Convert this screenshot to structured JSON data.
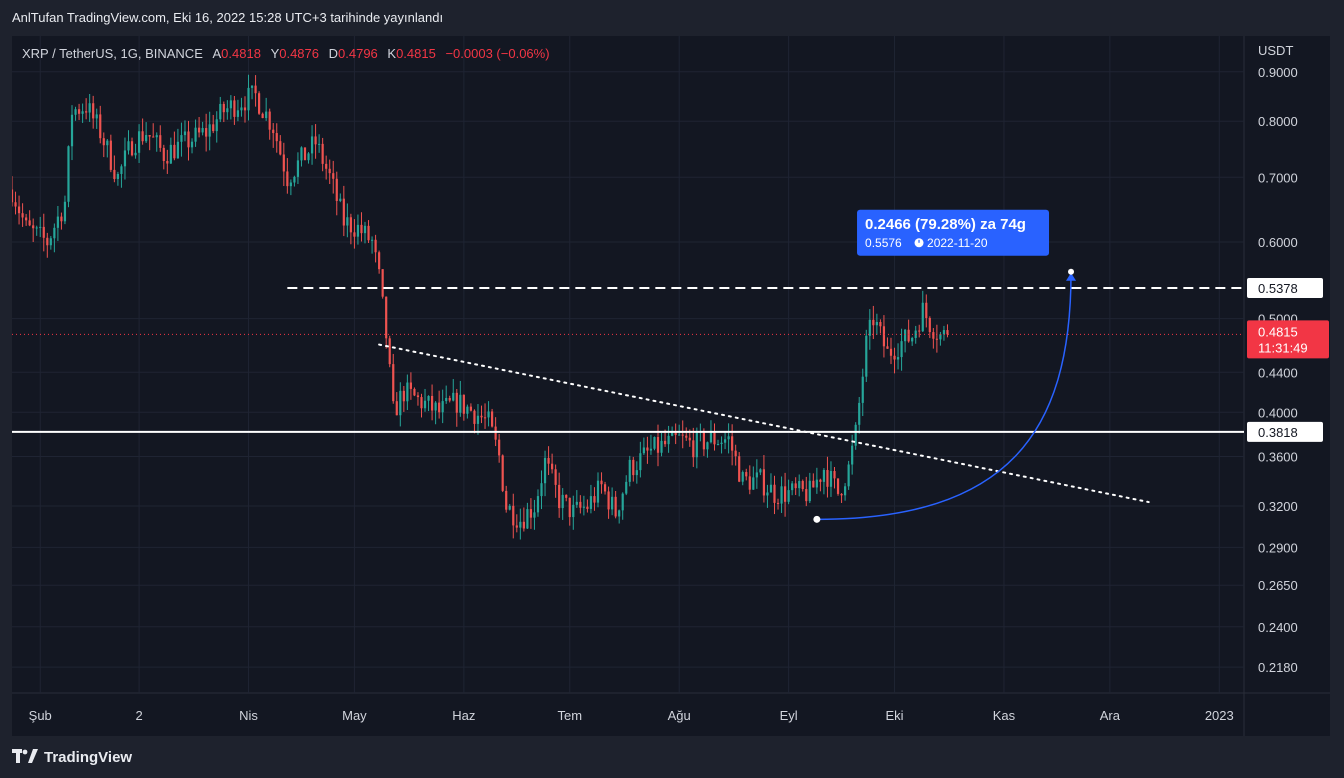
{
  "header": {
    "published_text": "AnlTufan TradingView.com, Eki 16, 2022 15:28 UTC+3 tarihinde yayınlandı"
  },
  "symbol": {
    "name": "XRP / TetherUS, 1G, BINANCE",
    "open_label": "A",
    "open": "0.4818",
    "high_label": "Y",
    "high": "0.4876",
    "low_label": "D",
    "low": "0.4796",
    "close_label": "K",
    "close": "0.4815",
    "change": "−0.0003 (−0.06%)"
  },
  "footer": {
    "brand": "TradingView"
  },
  "chart_data": {
    "type": "candlestick",
    "currency_label": "USDT",
    "y_scale": "log",
    "ylim": [
      0.205,
      0.98
    ],
    "y_ticks": [
      0.218,
      0.24,
      0.265,
      0.29,
      0.32,
      0.36,
      0.4,
      0.44,
      0.5,
      0.6,
      0.7,
      0.8,
      0.9
    ],
    "y_tick_labels": [
      "0.2180",
      "0.2400",
      "0.2650",
      "0.2900",
      "0.3200",
      "0.3600",
      "0.4000",
      "0.4400",
      "0.5000",
      "0.6000",
      "0.7000",
      "0.8000",
      "0.9000"
    ],
    "x_range": [
      "2022-01-24",
      "2023-01-08"
    ],
    "x_ticks": [
      {
        "date": "2022-02-01",
        "label": "Şub"
      },
      {
        "date": "2022-03-01",
        "label": "2"
      },
      {
        "date": "2022-04-01",
        "label": "Nis"
      },
      {
        "date": "2022-05-01",
        "label": "May"
      },
      {
        "date": "2022-06-01",
        "label": "Haz"
      },
      {
        "date": "2022-07-01",
        "label": "Tem"
      },
      {
        "date": "2022-08-01",
        "label": "Ağu"
      },
      {
        "date": "2022-09-01",
        "label": "Eyl"
      },
      {
        "date": "2022-10-01",
        "label": "Eki"
      },
      {
        "date": "2022-11-01",
        "label": "Kas"
      },
      {
        "date": "2022-12-01",
        "label": "Ara"
      },
      {
        "date": "2023-01-01",
        "label": "2023"
      }
    ],
    "price_path": [
      [
        "2022-01-24",
        0.68
      ],
      [
        "2022-01-28",
        0.62
      ],
      [
        "2022-02-03",
        0.6
      ],
      [
        "2022-02-08",
        0.66
      ],
      [
        "2022-02-10",
        0.82
      ],
      [
        "2022-02-14",
        0.83
      ],
      [
        "2022-02-18",
        0.78
      ],
      [
        "2022-02-23",
        0.7
      ],
      [
        "2022-02-27",
        0.76
      ],
      [
        "2022-03-03",
        0.78
      ],
      [
        "2022-03-08",
        0.74
      ],
      [
        "2022-03-14",
        0.76
      ],
      [
        "2022-03-20",
        0.78
      ],
      [
        "2022-03-25",
        0.82
      ],
      [
        "2022-03-30",
        0.84
      ],
      [
        "2022-04-03",
        0.85
      ],
      [
        "2022-04-08",
        0.79
      ],
      [
        "2022-04-12",
        0.7
      ],
      [
        "2022-04-16",
        0.73
      ],
      [
        "2022-04-20",
        0.76
      ],
      [
        "2022-04-24",
        0.7
      ],
      [
        "2022-04-28",
        0.63
      ],
      [
        "2022-05-02",
        0.62
      ],
      [
        "2022-05-06",
        0.6
      ],
      [
        "2022-05-08",
        0.55
      ],
      [
        "2022-05-10",
        0.48
      ],
      [
        "2022-05-12",
        0.4
      ],
      [
        "2022-05-15",
        0.42
      ],
      [
        "2022-05-20",
        0.41
      ],
      [
        "2022-05-25",
        0.4
      ],
      [
        "2022-05-30",
        0.41
      ],
      [
        "2022-06-04",
        0.4
      ],
      [
        "2022-06-08",
        0.39
      ],
      [
        "2022-06-11",
        0.36
      ],
      [
        "2022-06-13",
        0.32
      ],
      [
        "2022-06-17",
        0.31
      ],
      [
        "2022-06-21",
        0.32
      ],
      [
        "2022-06-24",
        0.355
      ],
      [
        "2022-06-28",
        0.325
      ],
      [
        "2022-07-02",
        0.315
      ],
      [
        "2022-07-06",
        0.32
      ],
      [
        "2022-07-10",
        0.335
      ],
      [
        "2022-07-14",
        0.315
      ],
      [
        "2022-07-18",
        0.35
      ],
      [
        "2022-07-24",
        0.365
      ],
      [
        "2022-07-28",
        0.37
      ],
      [
        "2022-08-01",
        0.375
      ],
      [
        "2022-08-05",
        0.37
      ],
      [
        "2022-08-10",
        0.375
      ],
      [
        "2022-08-15",
        0.375
      ],
      [
        "2022-08-19",
        0.34
      ],
      [
        "2022-08-24",
        0.34
      ],
      [
        "2022-08-28",
        0.33
      ],
      [
        "2022-09-02",
        0.33
      ],
      [
        "2022-09-07",
        0.33
      ],
      [
        "2022-09-11",
        0.35
      ],
      [
        "2022-09-15",
        0.33
      ],
      [
        "2022-09-18",
        0.35
      ],
      [
        "2022-09-20",
        0.38
      ],
      [
        "2022-09-23",
        0.47
      ],
      [
        "2022-09-25",
        0.5
      ],
      [
        "2022-09-29",
        0.46
      ],
      [
        "2022-10-02",
        0.47
      ],
      [
        "2022-10-06",
        0.48
      ],
      [
        "2022-10-09",
        0.51
      ],
      [
        "2022-10-11",
        0.495
      ],
      [
        "2022-10-14",
        0.48
      ],
      [
        "2022-10-16",
        0.4815
      ]
    ],
    "horizontal_lines": [
      {
        "price": 0.5378,
        "style": "dashed",
        "color": "#ffffff",
        "start": "2022-04-12",
        "label": "0.5378"
      },
      {
        "price": 0.3818,
        "style": "solid",
        "color": "#ffffff",
        "start": "2022-01-24",
        "label": "0.3818"
      }
    ],
    "trendline": {
      "style": "dotted",
      "color": "#ffffff",
      "from": [
        "2022-05-08",
        0.47
      ],
      "to": [
        "2022-12-12",
        0.323
      ]
    },
    "current_price": {
      "value": "0.4815",
      "countdown": "11:31:49",
      "color": "#f23645"
    },
    "projection": {
      "from": [
        "2022-09-09",
        0.31
      ],
      "to": [
        "2022-11-20",
        0.5576
      ],
      "color": "#2962ff",
      "label": "0.2466 (79.28%) za 74g",
      "sublabel_price": "0.5576",
      "sublabel_date": "2022-11-20"
    }
  }
}
